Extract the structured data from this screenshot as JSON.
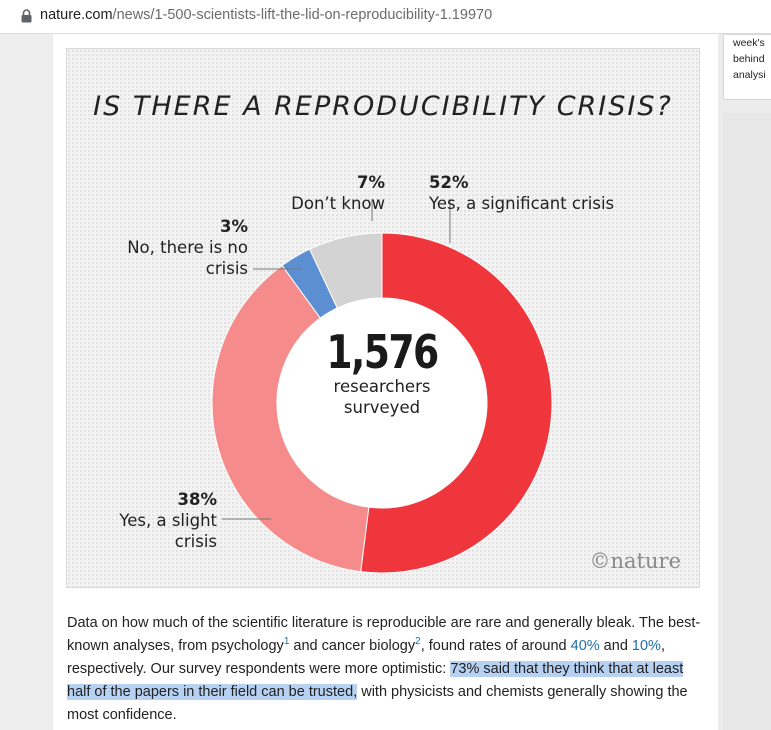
{
  "browser": {
    "url_host": "nature.com",
    "url_path": "/news/1-500-scientists-lift-the-lid-on-reproducibility-1.19970"
  },
  "sidebar": {
    "lines": [
      "week's",
      "behind",
      "analysi"
    ]
  },
  "figure": {
    "credit": "©nature",
    "center_number": "1,576",
    "center_line1": "researchers",
    "center_line2": "surveyed"
  },
  "chart_data": {
    "type": "pie",
    "title": "IS THERE A REPRODUCIBILITY CRISIS?",
    "slices": [
      {
        "label": "Yes, a significant crisis",
        "value": 52,
        "pct": "52%",
        "color": "#f0363d"
      },
      {
        "label": "Yes, a slight crisis",
        "value": 38,
        "pct": "38%",
        "color": "#f58b8b"
      },
      {
        "label": "No, there is no crisis",
        "value": 3,
        "pct": "3%",
        "color": "#5b8fd1"
      },
      {
        "label": "Don't know",
        "value": 7,
        "pct": "7%",
        "color": "#d3d3d3"
      }
    ],
    "labels_display": {
      "significant_line1": "Yes, a significant crisis",
      "dontknow_line1": "Don’t know",
      "no_line1": "No, there is no",
      "no_line2": "crisis",
      "slight_line1": "Yes, a slight",
      "slight_line2": "crisis"
    }
  },
  "article": {
    "p1": "Data on how much of the scientific literature is reproducible are rare and generally bleak. The best-known analyses, from psychology",
    "ref1": "1",
    "p2": " and cancer biology",
    "ref2": "2",
    "p3": ", found rates of around ",
    "link1": "40%",
    "p4": " and ",
    "link2": "10%",
    "p5": ", respectively. Our survey respondents were more optimistic: ",
    "highlight": "73% said that they think that at least half of the papers in their field can be trusted,",
    "p6": " with physicists and chemists generally showing the most confidence."
  }
}
